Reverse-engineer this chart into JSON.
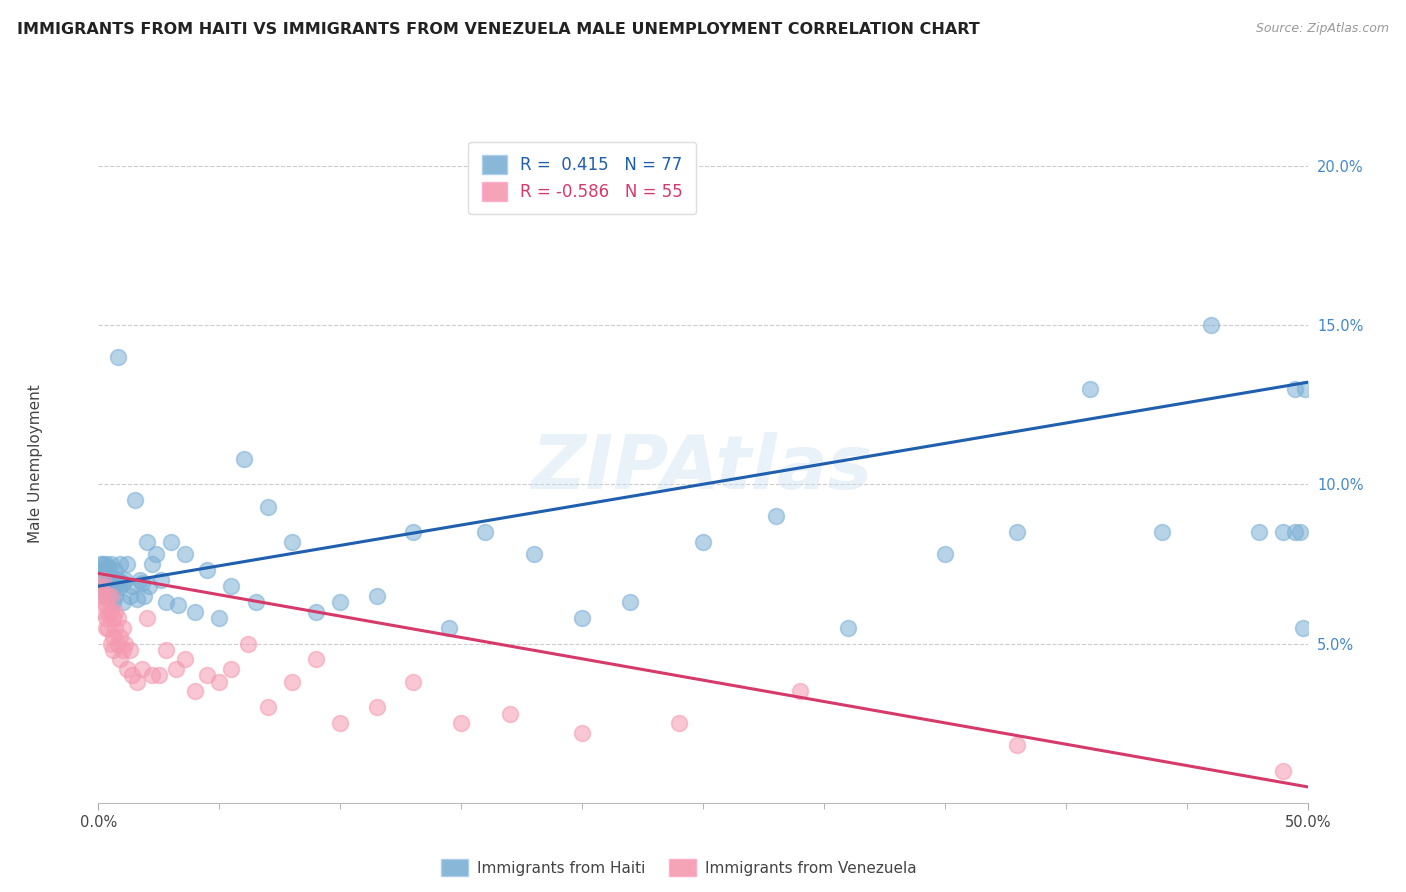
{
  "title": "IMMIGRANTS FROM HAITI VS IMMIGRANTS FROM VENEZUELA MALE UNEMPLOYMENT CORRELATION CHART",
  "source": "Source: ZipAtlas.com",
  "ylabel": "Male Unemployment",
  "xlim": [
    0.0,
    0.5
  ],
  "ylim": [
    0.0,
    0.21
  ],
  "xtick_positions": [
    0.0,
    0.5
  ],
  "xtick_labels": [
    "0.0%",
    "50.0%"
  ],
  "ytick_positions": [
    0.05,
    0.1,
    0.15,
    0.2
  ],
  "ytick_labels": [
    "5.0%",
    "10.0%",
    "15.0%",
    "20.0%"
  ],
  "legend_haiti": "R =  0.415   N = 77",
  "legend_venezuela": "R = -0.586   N = 55",
  "legend_label_haiti": "Immigrants from Haiti",
  "legend_label_venezuela": "Immigrants from Venezuela",
  "haiti_color": "#7BAFD4",
  "venezuela_color": "#F499B0",
  "haiti_line_color": "#1F5FAD",
  "venezuela_line_color": "#D63A6A",
  "background_color": "#FFFFFF",
  "grid_color": "#CCCCCC",
  "title_fontsize": 11.5,
  "axis_label_fontsize": 11,
  "tick_fontsize": 10.5,
  "legend_fontsize": 12,
  "haiti_x": [
    0.001,
    0.001,
    0.002,
    0.002,
    0.002,
    0.003,
    0.003,
    0.003,
    0.003,
    0.004,
    0.004,
    0.004,
    0.005,
    0.005,
    0.005,
    0.006,
    0.006,
    0.006,
    0.007,
    0.007,
    0.007,
    0.008,
    0.008,
    0.009,
    0.009,
    0.01,
    0.01,
    0.011,
    0.012,
    0.013,
    0.014,
    0.015,
    0.016,
    0.017,
    0.018,
    0.019,
    0.02,
    0.021,
    0.022,
    0.024,
    0.026,
    0.028,
    0.03,
    0.033,
    0.036,
    0.04,
    0.045,
    0.05,
    0.055,
    0.06,
    0.065,
    0.07,
    0.08,
    0.09,
    0.1,
    0.115,
    0.13,
    0.145,
    0.16,
    0.18,
    0.2,
    0.22,
    0.25,
    0.28,
    0.31,
    0.35,
    0.38,
    0.41,
    0.44,
    0.46,
    0.48,
    0.49,
    0.495,
    0.495,
    0.497,
    0.498,
    0.499
  ],
  "haiti_y": [
    0.075,
    0.07,
    0.075,
    0.068,
    0.073,
    0.072,
    0.069,
    0.075,
    0.065,
    0.07,
    0.074,
    0.068,
    0.071,
    0.075,
    0.066,
    0.07,
    0.063,
    0.069,
    0.068,
    0.073,
    0.065,
    0.14,
    0.07,
    0.068,
    0.075,
    0.063,
    0.069,
    0.07,
    0.075,
    0.065,
    0.068,
    0.095,
    0.064,
    0.07,
    0.069,
    0.065,
    0.082,
    0.068,
    0.075,
    0.078,
    0.07,
    0.063,
    0.082,
    0.062,
    0.078,
    0.06,
    0.073,
    0.058,
    0.068,
    0.108,
    0.063,
    0.093,
    0.082,
    0.06,
    0.063,
    0.065,
    0.085,
    0.055,
    0.085,
    0.078,
    0.058,
    0.063,
    0.082,
    0.09,
    0.055,
    0.078,
    0.085,
    0.13,
    0.085,
    0.15,
    0.085,
    0.085,
    0.13,
    0.085,
    0.085,
    0.055,
    0.13
  ],
  "venezuela_x": [
    0.001,
    0.001,
    0.002,
    0.002,
    0.002,
    0.003,
    0.003,
    0.003,
    0.004,
    0.004,
    0.004,
    0.005,
    0.005,
    0.005,
    0.006,
    0.006,
    0.006,
    0.007,
    0.007,
    0.008,
    0.008,
    0.009,
    0.009,
    0.01,
    0.01,
    0.011,
    0.012,
    0.013,
    0.014,
    0.016,
    0.018,
    0.02,
    0.022,
    0.025,
    0.028,
    0.032,
    0.036,
    0.04,
    0.045,
    0.05,
    0.055,
    0.062,
    0.07,
    0.08,
    0.09,
    0.1,
    0.115,
    0.13,
    0.15,
    0.17,
    0.2,
    0.24,
    0.29,
    0.38,
    0.49
  ],
  "venezuela_y": [
    0.068,
    0.065,
    0.065,
    0.06,
    0.07,
    0.058,
    0.055,
    0.062,
    0.06,
    0.055,
    0.065,
    0.05,
    0.06,
    0.065,
    0.052,
    0.058,
    0.048,
    0.055,
    0.06,
    0.05,
    0.058,
    0.045,
    0.052,
    0.048,
    0.055,
    0.05,
    0.042,
    0.048,
    0.04,
    0.038,
    0.042,
    0.058,
    0.04,
    0.04,
    0.048,
    0.042,
    0.045,
    0.035,
    0.04,
    0.038,
    0.042,
    0.05,
    0.03,
    0.038,
    0.045,
    0.025,
    0.03,
    0.038,
    0.025,
    0.028,
    0.022,
    0.025,
    0.035,
    0.018,
    0.01
  ],
  "haiti_line_x0": 0.0,
  "haiti_line_x1": 0.5,
  "haiti_line_y0": 0.068,
  "haiti_line_y1": 0.132,
  "venezuela_line_x0": 0.0,
  "venezuela_line_x1": 0.5,
  "venezuela_line_y0": 0.072,
  "venezuela_line_y1": 0.005
}
